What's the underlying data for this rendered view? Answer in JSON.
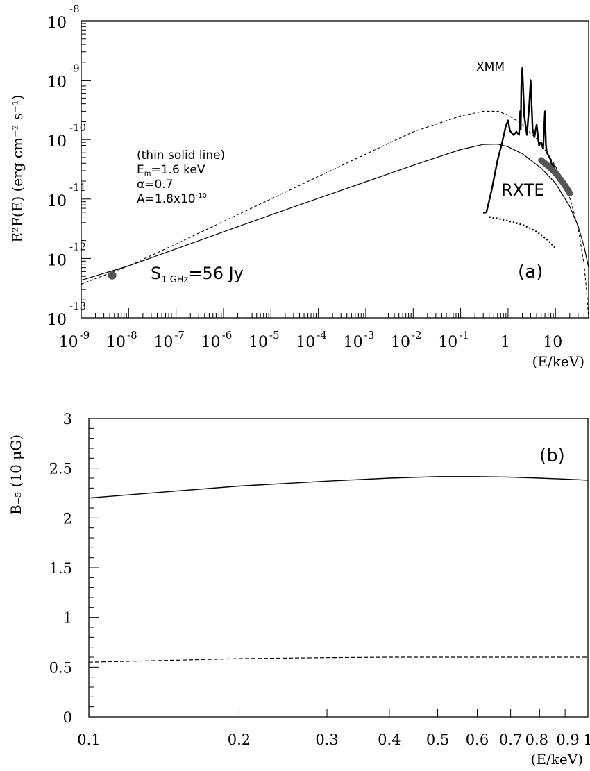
{
  "chart_data": [
    {
      "type": "line",
      "panel": "a",
      "ylabel": "E²F(E) (erg cm⁻² s⁻¹)",
      "xlabel": "(E/keV)",
      "x_scale": "log",
      "y_scale": "log",
      "xlim": [
        1e-09,
        50
      ],
      "ylim": [
        1e-13,
        1e-08
      ],
      "x_ticks": [
        {
          "v": 1e-09,
          "base": "10",
          "exp": "-9"
        },
        {
          "v": 1e-08,
          "base": "10",
          "exp": "-8"
        },
        {
          "v": 1e-07,
          "base": "10",
          "exp": "-7"
        },
        {
          "v": 1e-06,
          "base": "10",
          "exp": "-6"
        },
        {
          "v": 1e-05,
          "base": "10",
          "exp": "-5"
        },
        {
          "v": 0.0001,
          "base": "10",
          "exp": "-4"
        },
        {
          "v": 0.001,
          "base": "10",
          "exp": "-3"
        },
        {
          "v": 0.01,
          "base": "10",
          "exp": "-2"
        },
        {
          "v": 0.1,
          "base": "10",
          "exp": "-1"
        },
        {
          "v": 1,
          "base": "1",
          "exp": ""
        },
        {
          "v": 10,
          "base": "10",
          "exp": ""
        }
      ],
      "y_ticks": [
        {
          "v": 1e-13,
          "base": "10",
          "exp": "-13"
        },
        {
          "v": 1e-12,
          "base": "10",
          "exp": "-12"
        },
        {
          "v": 1e-11,
          "base": "10",
          "exp": "-11"
        },
        {
          "v": 1e-10,
          "base": "10",
          "exp": "-10"
        },
        {
          "v": 1e-09,
          "base": "10",
          "exp": "-9"
        },
        {
          "v": 1e-08,
          "base": "10",
          "exp": "-8"
        }
      ],
      "series": [
        {
          "style": "solid-thin",
          "x": [
            1e-09,
            1e-08,
            1e-07,
            1e-06,
            1e-05,
            0.0001,
            0.001,
            0.01,
            0.1,
            0.3,
            0.6,
            1,
            2,
            5,
            10,
            20,
            30,
            40,
            50
          ],
          "y": [
            4.3e-13,
            7.5e-13,
            1.45e-12,
            2.8e-12,
            5.4e-12,
            1.03e-11,
            1.95e-11,
            3.7e-11,
            6.8e-11,
            8.3e-11,
            8.4e-11,
            7.6e-11,
            5.8e-11,
            3.3e-11,
            1.85e-11,
            7.5e-12,
            3.5e-12,
            1.6e-12,
            7e-13
          ]
        },
        {
          "style": "dashed",
          "x": [
            1e-09,
            1e-08,
            1e-07,
            1e-06,
            1e-05,
            0.0001,
            0.001,
            0.01,
            0.1,
            0.3,
            0.6,
            1,
            2,
            5,
            10,
            20,
            30,
            40,
            45,
            50
          ],
          "y": [
            3.7e-13,
            7.5e-13,
            1.75e-12,
            4.2e-12,
            1e-11,
            2.4e-11,
            5.7e-11,
            1.35e-10,
            2.5e-10,
            3e-10,
            3e-10,
            2.6e-10,
            1.8e-10,
            8.5e-11,
            3.6e-11,
            1.05e-11,
            3.3e-12,
            8e-13,
            3e-13,
            1e-13
          ]
        },
        {
          "name": "XMM",
          "style": "data-thick",
          "x": [
            0.3,
            0.35,
            0.45,
            0.6,
            0.75,
            0.9,
            1.0,
            1.1,
            1.3,
            1.5,
            1.7,
            1.8,
            1.85,
            1.9,
            2.0,
            2.2,
            2.5,
            2.8,
            3.0,
            3.3,
            3.6,
            4.0,
            4.5,
            5.0,
            5.5,
            6.0,
            6.3,
            6.6,
            7.0,
            7.5,
            8.0,
            8.5,
            9.0,
            10.0
          ],
          "y": [
            5.8e-12,
            6e-12,
            1.4e-11,
            4.5e-11,
            9e-11,
            1.7e-10,
            2.1e-10,
            1.4e-10,
            1.2e-10,
            1.35e-10,
            1.2e-10,
            3e-10,
            1.5e-10,
            8e-10,
            1.6e-09,
            2.5e-10,
            1.2e-10,
            4e-10,
            1e-09,
            1.5e-10,
            1.1e-10,
            1.8e-10,
            8e-11,
            9e-11,
            7e-11,
            3e-10,
            8e-11,
            6e-11,
            5.5e-11,
            5e-11,
            4.5e-11,
            3.5e-11,
            3.8e-11,
            3e-11
          ]
        },
        {
          "name": "RXTE",
          "style": "data-band",
          "x": [
            5,
            7,
            9,
            11,
            13,
            15,
            17,
            19,
            20
          ],
          "y": [
            4.5e-11,
            3.6e-11,
            3e-11,
            2.5e-11,
            2.1e-11,
            1.8e-11,
            1.55e-11,
            1.35e-11,
            1.25e-11
          ]
        },
        {
          "style": "dotted",
          "x": [
            0.4,
            0.6,
            1,
            2,
            3,
            5,
            7,
            10
          ],
          "y": [
            5e-12,
            4.7e-12,
            4.3e-12,
            3.7e-12,
            3.2e-12,
            2.5e-12,
            2e-12,
            1.5e-12
          ]
        },
        {
          "style": "marker",
          "x": [
            4.5e-09
          ],
          "y": [
            5.2e-13
          ]
        }
      ],
      "labels": {
        "xmm": "XMM",
        "rxte": "RXTE",
        "panel": "(a)",
        "radio_S": "S",
        "radio_sub": "1 GHz",
        "radio_val": "=56 Jy",
        "note_line1": "(thin solid line)",
        "note_Em": "E",
        "note_Em_sub": "m",
        "note_Em_val": "=1.6 keV",
        "note_alpha": "α=0.7",
        "note_A": "A=1.8x10",
        "note_A_exp": "-10"
      }
    },
    {
      "type": "line",
      "panel": "b",
      "ylabel": "B₋₅ (10 μG)",
      "xlabel": "(E/keV)",
      "x_scale": "log",
      "y_scale": "linear",
      "xlim": [
        0.1,
        1
      ],
      "ylim": [
        0,
        3
      ],
      "x_ticks": [
        {
          "v": 0.1,
          "label": "0.1"
        },
        {
          "v": 0.2,
          "label": "0.2"
        },
        {
          "v": 0.3,
          "label": "0.3"
        },
        {
          "v": 0.4,
          "label": "0.4"
        },
        {
          "v": 0.5,
          "label": "0.5"
        },
        {
          "v": 0.6,
          "label": "0.6"
        },
        {
          "v": 0.7,
          "label": "0.7"
        },
        {
          "v": 0.8,
          "label": "0.8"
        },
        {
          "v": 0.9,
          "label": "0.9"
        },
        {
          "v": 1,
          "label": "1"
        }
      ],
      "y_ticks": [
        {
          "v": 0,
          "label": "0"
        },
        {
          "v": 0.5,
          "label": "0.5"
        },
        {
          "v": 1,
          "label": "1"
        },
        {
          "v": 1.5,
          "label": "1.5"
        },
        {
          "v": 2,
          "label": "2"
        },
        {
          "v": 2.5,
          "label": "2.5"
        },
        {
          "v": 3,
          "label": "3"
        }
      ],
      "series": [
        {
          "style": "solid",
          "x": [
            0.1,
            0.15,
            0.2,
            0.3,
            0.4,
            0.5,
            0.6,
            0.7,
            0.8,
            0.9,
            1.0
          ],
          "y": [
            2.2,
            2.27,
            2.32,
            2.37,
            2.4,
            2.415,
            2.415,
            2.41,
            2.4,
            2.39,
            2.38
          ]
        },
        {
          "style": "dashed",
          "x": [
            0.1,
            0.15,
            0.2,
            0.3,
            0.4,
            0.5,
            0.6,
            0.7,
            0.8,
            0.9,
            1.0
          ],
          "y": [
            0.55,
            0.57,
            0.585,
            0.595,
            0.6,
            0.6,
            0.6,
            0.6,
            0.6,
            0.6,
            0.6
          ]
        }
      ],
      "labels": {
        "panel": "(b)"
      }
    }
  ]
}
